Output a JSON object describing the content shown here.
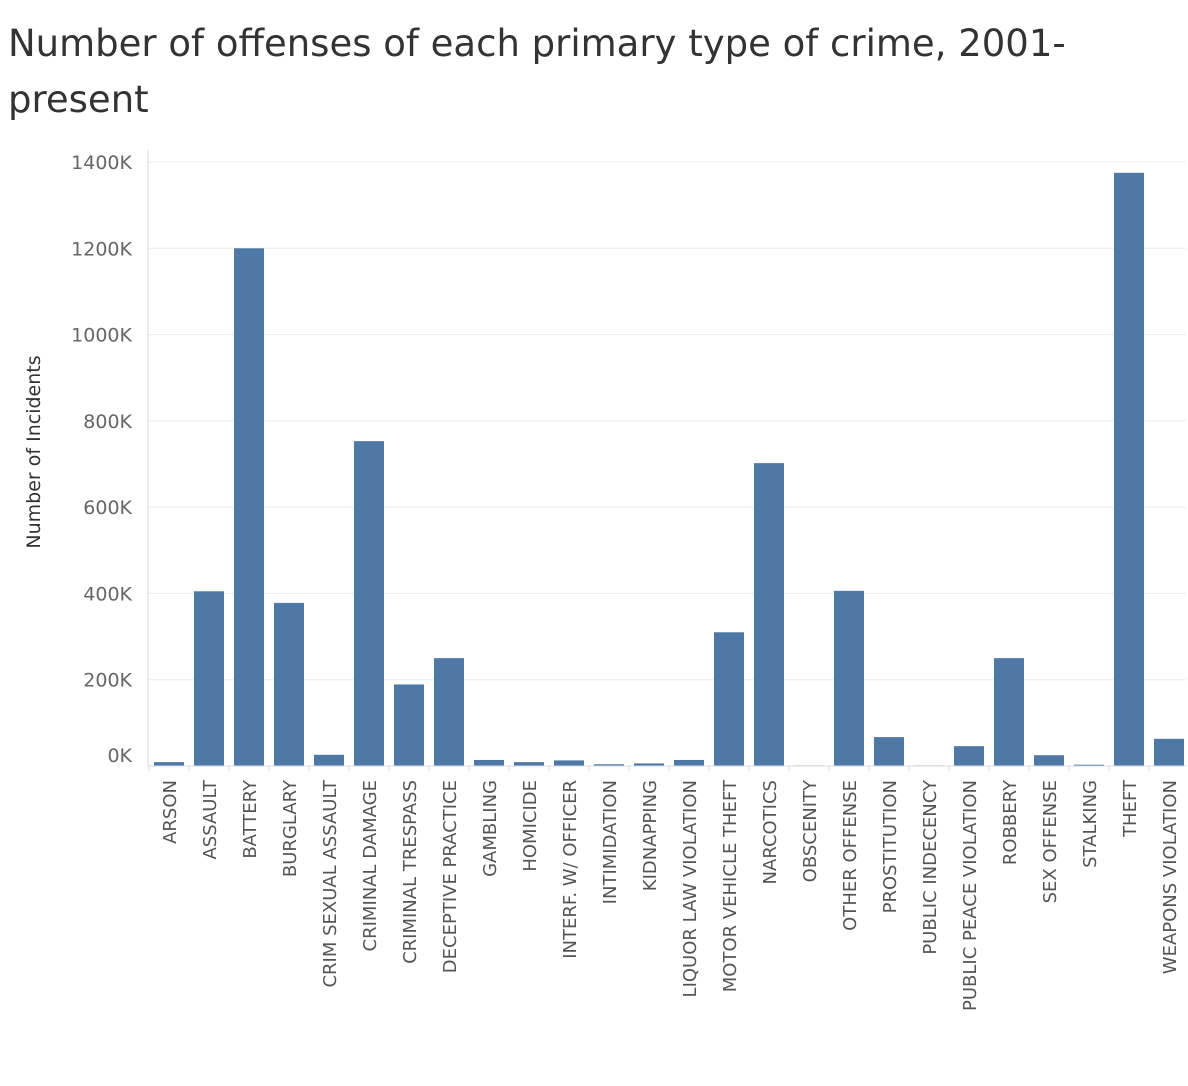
{
  "chart_data": {
    "type": "bar",
    "title": "Number of offenses of each primary type of crime, 2001-present",
    "xlabel": "",
    "ylabel": "Number of Incidents",
    "ylim": [
      0,
      1400000
    ],
    "y_ticks": [
      0,
      200000,
      400000,
      600000,
      800000,
      1000000,
      1200000,
      1400000
    ],
    "y_tick_labels": [
      "0K",
      "200K",
      "400K",
      "600K",
      "800K",
      "1000K",
      "1200K",
      "1400K"
    ],
    "grid": true,
    "bar_color": "#4e79a7",
    "categories": [
      "ARSON",
      "ASSAULT",
      "BATTERY",
      "BURGLARY",
      "CRIM SEXUAL ASSAULT",
      "CRIMINAL DAMAGE",
      "CRIMINAL TRESPASS",
      "DECEPTIVE PRACTICE",
      "GAMBLING",
      "HOMICIDE",
      "INTERF. W/ OFFICER",
      "INTIMIDATION",
      "KIDNAPPING",
      "LIQUOR LAW VIOLATION",
      "MOTOR VEHICLE THEFT",
      "NARCOTICS",
      "OBSCENITY",
      "OTHER OFFENSE",
      "PROSTITUTION",
      "PUBLIC INDECENCY",
      "PUBLIC PEACE VIOLATION",
      "ROBBERY",
      "SEX OFFENSE",
      "STALKING",
      "THEFT",
      "WEAPONS VIOLATION"
    ],
    "values": [
      9000,
      405000,
      1200000,
      378000,
      26000,
      753000,
      189000,
      250000,
      14000,
      9000,
      13000,
      4000,
      6000,
      14000,
      310000,
      702000,
      600,
      406000,
      67000,
      200,
      46000,
      250000,
      25000,
      3000,
      1375000,
      63000
    ]
  }
}
